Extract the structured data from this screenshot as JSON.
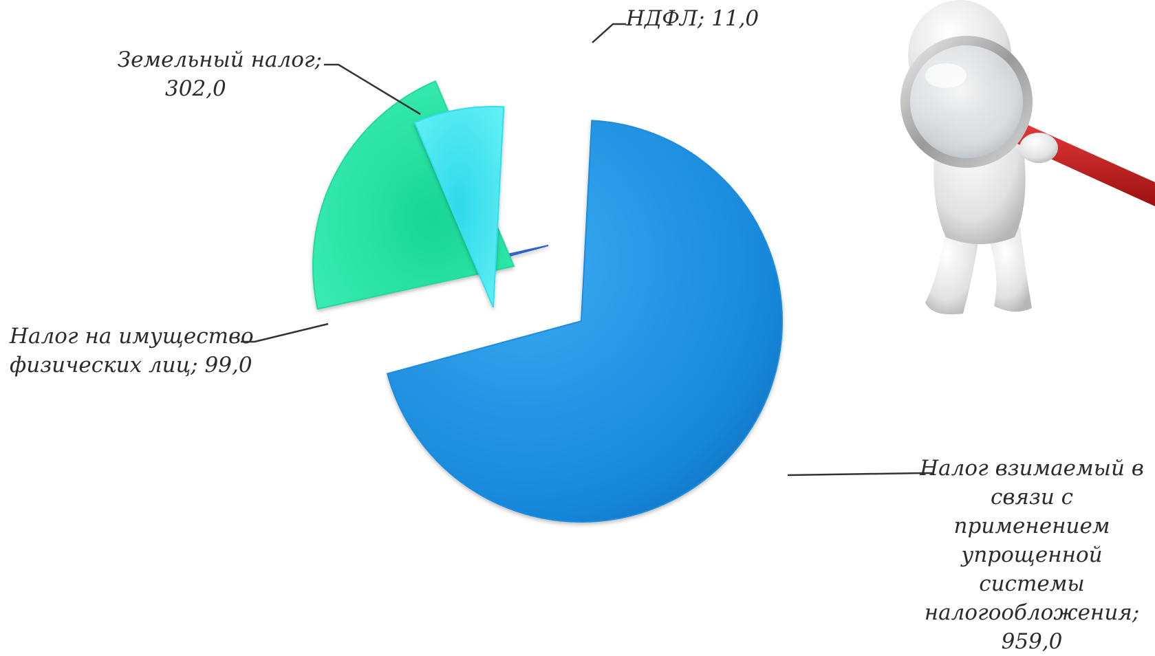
{
  "chart_data": {
    "type": "pie",
    "exploded": true,
    "slices": [
      {
        "label": "Налог взимаемый в связи с применением упрощенной системы налогообложения",
        "value": 959.0,
        "value_text": "959,0",
        "color": "#1b8de0"
      },
      {
        "label": "НДФЛ",
        "value": 11.0,
        "value_text": "11,0",
        "color": "#2a63c9"
      },
      {
        "label": "Земельный налог",
        "value": 302.0,
        "value_text": "302,0",
        "color": "#22d9a0"
      },
      {
        "label": "Налог на имущество физических лиц",
        "value": 99.0,
        "value_text": "99,0",
        "color": "#2fe0ee"
      }
    ]
  },
  "labels": {
    "ndfl_text": "НДФЛ; 11,0",
    "zem_line1": "Земельный налог;",
    "zem_line2": "302,0",
    "im_line1": "Налог на имущество",
    "im_line2": "физических лиц; 99,0",
    "usn_line1": "Налог взимаемый в",
    "usn_line2": "связи с применением",
    "usn_line3": "упрощенной",
    "usn_line4": "системы",
    "usn_line5": "налогообложения;",
    "usn_line6": "959,0"
  },
  "illustration": {
    "icon": "figure-with-magnifying-glass-icon"
  }
}
